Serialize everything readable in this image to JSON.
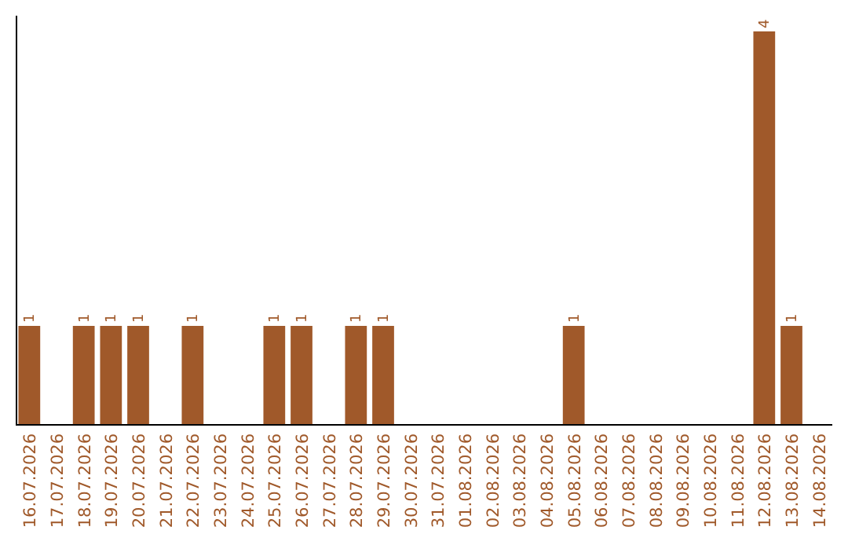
{
  "chart_data": {
    "type": "bar",
    "categories": [
      "16.07.2026",
      "17.07.2026",
      "18.07.2026",
      "19.07.2026",
      "20.07.2026",
      "21.07.2026",
      "22.07.2026",
      "23.07.2026",
      "24.07.2026",
      "25.07.2026",
      "26.07.2026",
      "27.07.2026",
      "28.07.2026",
      "29.07.2026",
      "30.07.2026",
      "31.07.2026",
      "01.08.2026",
      "02.08.2026",
      "03.08.2026",
      "04.08.2026",
      "05.08.2026",
      "06.08.2026",
      "07.08.2026",
      "08.08.2026",
      "09.08.2026",
      "10.08.2026",
      "11.08.2026",
      "12.08.2026",
      "13.08.2026",
      "14.08.2026"
    ],
    "values": [
      1,
      0,
      1,
      1,
      1,
      0,
      1,
      0,
      0,
      1,
      1,
      0,
      1,
      1,
      0,
      0,
      0,
      0,
      0,
      0,
      1,
      0,
      0,
      0,
      0,
      0,
      0,
      4,
      1,
      0
    ],
    "value_labels": [
      "1",
      null,
      "1",
      "1",
      "1",
      null,
      "1",
      null,
      null,
      "1",
      "1",
      null,
      "1",
      "1",
      null,
      null,
      null,
      null,
      null,
      null,
      "1",
      null,
      null,
      null,
      null,
      null,
      null,
      "4",
      "1",
      null
    ],
    "color": "#a0592a",
    "relative": false
  }
}
